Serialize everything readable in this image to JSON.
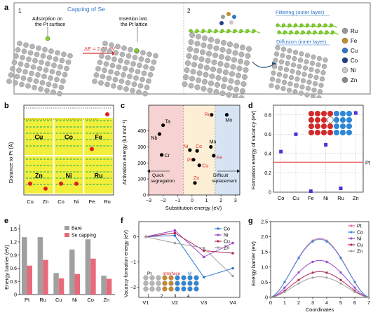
{
  "panels": {
    "a": {
      "letter": "a",
      "sub1": "1",
      "sub2": "2",
      "title": "Capping of Se",
      "adsorption": [
        "Adsorption on",
        "the Pt surface"
      ],
      "insertion": [
        "Insertion into",
        "the Pt lattice"
      ],
      "delta_e": "ΔE = 2.68 eV",
      "filtering": "Filtering (outer layer)",
      "diffusion": "Diffusion (inner layer)",
      "legend": [
        {
          "label": "Ru",
          "color": "#9a9a9a"
        },
        {
          "label": "Fe",
          "color": "#c58a2b"
        },
        {
          "label": "Cu",
          "color": "#2f76c9"
        },
        {
          "label": "Co",
          "color": "#1f3f8a"
        },
        {
          "label": "Ni",
          "color": "#c9c9c9"
        },
        {
          "label": "Zn",
          "color": "#8a8a8a"
        }
      ],
      "colors": {
        "se": "#7fcf2a",
        "pt": "#a8a8a8",
        "accent": "#2f76c9",
        "delta": "#e03030"
      }
    },
    "b": {
      "letter": "b",
      "ylabel": "Distance to Pt (Å)",
      "cells": [
        "Cu",
        "Co",
        "Fe",
        "Zn",
        "Ni",
        "Ru"
      ],
      "xticks": [
        "Cu",
        "Zn",
        "Co",
        "Ni",
        "Fe",
        "Ru"
      ]
    },
    "c": {
      "letter": "c",
      "xlabel": "Substitution energy (eV)",
      "ylabel": "Activation energy (kJ mol⁻¹)",
      "region_left": [
        "Quick",
        "segregation"
      ],
      "region_right": [
        "Difficult",
        "replacement"
      ],
      "xticks": [
        "−3",
        "−2",
        "−1",
        "0",
        "1",
        "2",
        "3"
      ],
      "yticks": [
        "0",
        "100",
        "200",
        "300",
        "400"
      ],
      "points": [
        {
          "label": "Ta",
          "color": "#000000"
        },
        {
          "label": "Nb",
          "color": "#000000"
        },
        {
          "label": "Cr",
          "color": "#000000"
        },
        {
          "label": "Ni",
          "color": "#e03030"
        },
        {
          "label": "Co",
          "color": "#e03030"
        },
        {
          "label": "Pt",
          "color": "#e03030"
        },
        {
          "label": "Cu",
          "color": "#e03030"
        },
        {
          "label": "Zn",
          "color": "#e03030"
        },
        {
          "label": "Mn",
          "color": "#000000"
        },
        {
          "label": "Fe",
          "color": "#e03030"
        },
        {
          "label": "Ru",
          "color": "#e03030"
        },
        {
          "label": "Mo",
          "color": "#000000"
        }
      ]
    },
    "d": {
      "letter": "d",
      "ylabel": "Formation energy of vacancy (eV)",
      "yticks": [
        "0",
        "0.2",
        "0.4",
        "0.6",
        "0.8"
      ],
      "xticks": [
        "Co",
        "Cu",
        "Fe",
        "Ni",
        "Ru",
        "Zn"
      ],
      "pt_label": "Pt"
    },
    "e": {
      "letter": "e",
      "ylabel": "Energy barrier (eV)",
      "yticks": [
        "0",
        "0.3",
        "0.6",
        "0.9",
        "1.2",
        "1.5"
      ]
    },
    "f": {
      "letter": "f",
      "ylabel": "Vacancy formation energy (eV)",
      "yticks": [
        "−2",
        "−1",
        "0"
      ],
      "inset_pt": "Pt",
      "inset_interface": "Interface",
      "inset_m": "M",
      "inset_sites": [
        "1",
        "2",
        "3",
        "4"
      ]
    },
    "g": {
      "letter": "g",
      "xlabel": "Coordinates",
      "ylabel": "Energy barrier (eV)",
      "yticks": [
        "0",
        "0.5",
        "1.0",
        "1.5",
        "2.0",
        "2.5"
      ],
      "xticks": [
        "0",
        "1",
        "2",
        "3",
        "4",
        "5",
        "6",
        "7"
      ]
    }
  },
  "chart_data": [
    {
      "panel": "b",
      "type": "scatter",
      "ylabel": "Distance to Pt (Å)",
      "categories": [
        "Cu",
        "Zn",
        "Co",
        "Ni",
        "Fe",
        "Ru"
      ],
      "values": [
        0.2,
        0.1,
        0.2,
        0.2,
        0.9,
        1.6
      ],
      "colors": {
        "point": "#e01e1e",
        "cell": "#f2ef3a",
        "grid": "#ffffff",
        "dotted": "#000000"
      }
    },
    {
      "panel": "c",
      "type": "scatter",
      "xlabel": "Substitution energy (eV)",
      "ylabel": "Activation energy (kJ mol⁻¹)",
      "xlim": [
        -3,
        3.3
      ],
      "ylim": [
        0,
        560
      ],
      "points": [
        {
          "label": "Ta",
          "x": -2.0,
          "y": 435
        },
        {
          "label": "Nb",
          "x": -2.25,
          "y": 380
        },
        {
          "label": "Cr",
          "x": -2.1,
          "y": 250
        },
        {
          "label": "Ni",
          "x": -0.15,
          "y": 280
        },
        {
          "label": "Co",
          "x": 0.35,
          "y": 275
        },
        {
          "label": "Pt",
          "x": 0.1,
          "y": 220
        },
        {
          "label": "Cu",
          "x": 0.5,
          "y": 185
        },
        {
          "label": "Zn",
          "x": 0.2,
          "y": 75
        },
        {
          "label": "Mn",
          "x": 1.3,
          "y": 300
        },
        {
          "label": "Fe",
          "x": 1.5,
          "y": 245
        },
        {
          "label": "Ru",
          "x": 1.35,
          "y": 500
        },
        {
          "label": "Mo",
          "x": 2.4,
          "y": 500
        }
      ],
      "regions": [
        {
          "name": "Quick segregation",
          "x": [
            -3,
            -0.6
          ],
          "color": "#f6d2d2"
        },
        {
          "name": "",
          "x": [
            -0.6,
            1.6
          ],
          "color": "#fcefd6"
        },
        {
          "name": "Difficult replacement",
          "x": [
            1.6,
            3.3
          ],
          "color": "#d5e3f3"
        }
      ]
    },
    {
      "panel": "d",
      "type": "scatter",
      "ylabel": "Formation energy of vacancy (eV)",
      "categories": [
        "Co",
        "Cu",
        "Fe",
        "Ni",
        "Ru",
        "Zn"
      ],
      "values": [
        0.42,
        0.6,
        0.01,
        0.49,
        0.04,
        0.82
      ],
      "reference_line": {
        "label": "Pt",
        "value": 0.31,
        "color": "#e03030"
      },
      "ylim": [
        0,
        0.9
      ],
      "point_color": "#4a2fd6"
    },
    {
      "panel": "e",
      "type": "bar",
      "ylabel": "Energy barrier (eV)",
      "categories": [
        "Pt",
        "Ru",
        "Cu",
        "Ni",
        "Co",
        "Zn"
      ],
      "series": [
        {
          "name": "Bare",
          "values": [
            1.31,
            1.31,
            0.49,
            1.03,
            1.26,
            0.43
          ],
          "color": "#a0a0a0"
        },
        {
          "name": "Se capping",
          "values": [
            0.66,
            0.79,
            0.37,
            0.47,
            0.82,
            0.36
          ],
          "color": "#e86a7a"
        }
      ],
      "ylim": [
        0,
        1.6
      ]
    },
    {
      "panel": "f",
      "type": "line",
      "ylabel": "Vacancy formation energy (eV)",
      "categories": [
        "V1",
        "V2",
        "V3",
        "V4"
      ],
      "series": [
        {
          "name": "Co",
          "values": [
            0.0,
            0.05,
            -1.6,
            -1.25
          ],
          "color": "#2f76c9"
        },
        {
          "name": "Ni",
          "values": [
            0.0,
            0.25,
            -0.8,
            -0.25
          ],
          "color": "#9a4dd0"
        },
        {
          "name": "Cu",
          "values": [
            0.0,
            0.15,
            -0.55,
            -0.65
          ],
          "color": "#b02a55"
        },
        {
          "name": "Zn",
          "values": [
            0.0,
            -0.25,
            -0.45,
            -1.55
          ],
          "color": "#a0a0a0"
        }
      ],
      "ylim": [
        -2.4,
        0.6
      ]
    },
    {
      "panel": "g",
      "type": "line",
      "xlabel": "Coordinates",
      "ylabel": "Energy barrier (eV)",
      "xlim": [
        0,
        7
      ],
      "ylim": [
        0,
        2.5
      ],
      "series": [
        {
          "name": "Pt",
          "peak": 1.95,
          "color": "#f06aa0"
        },
        {
          "name": "Co",
          "peak": 1.92,
          "color": "#3a8fd6"
        },
        {
          "name": "Ni",
          "peak": 1.22,
          "color": "#9a4dd0"
        },
        {
          "name": "Cu",
          "peak": 0.85,
          "color": "#b02a55"
        },
        {
          "name": "Zn",
          "peak": 0.68,
          "color": "#a0a0a0"
        }
      ]
    }
  ]
}
